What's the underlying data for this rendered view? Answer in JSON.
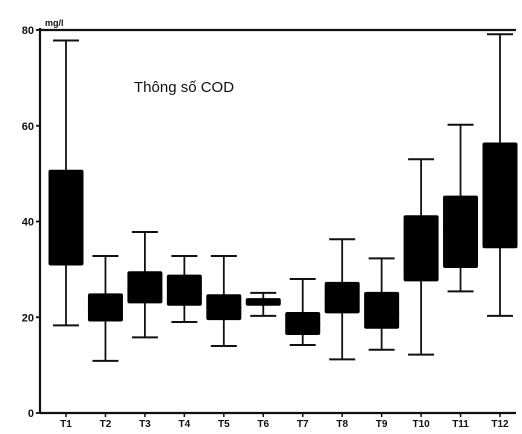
{
  "chart_data": {
    "type": "boxplot",
    "title": "Thông số COD",
    "unit": "mg/l",
    "ylim": [
      0,
      80
    ],
    "yticks": [
      0,
      20,
      40,
      60,
      80
    ],
    "grid": false,
    "legend": "none",
    "box_color": "#000000",
    "categories": [
      "T1",
      "T2",
      "T3",
      "T4",
      "T5",
      "T6",
      "T7",
      "T8",
      "T9",
      "T10",
      "T11",
      "T12"
    ],
    "boxes": [
      {
        "label": "T1",
        "min": 18.3,
        "q1": 30.8,
        "median": 41.0,
        "q3": 50.8,
        "max": 77.8
      },
      {
        "label": "T2",
        "min": 10.9,
        "q1": 19.1,
        "median": 22.0,
        "q3": 25.0,
        "max": 32.8
      },
      {
        "label": "T3",
        "min": 15.8,
        "q1": 22.9,
        "median": 26.0,
        "q3": 29.6,
        "max": 37.8
      },
      {
        "label": "T4",
        "min": 19.0,
        "q1": 22.4,
        "median": 25.5,
        "q3": 28.9,
        "max": 32.8
      },
      {
        "label": "T5",
        "min": 14.0,
        "q1": 19.4,
        "median": 22.0,
        "q3": 24.8,
        "max": 32.8
      },
      {
        "label": "T6",
        "min": 20.3,
        "q1": 22.4,
        "median": 23.0,
        "q3": 24.0,
        "max": 25.1
      },
      {
        "label": "T7",
        "min": 14.2,
        "q1": 16.3,
        "median": 18.5,
        "q3": 21.1,
        "max": 28.0
      },
      {
        "label": "T8",
        "min": 11.2,
        "q1": 20.8,
        "median": 24.0,
        "q3": 27.4,
        "max": 36.3
      },
      {
        "label": "T9",
        "min": 13.2,
        "q1": 17.6,
        "median": 21.0,
        "q3": 25.3,
        "max": 32.3
      },
      {
        "label": "T10",
        "min": 12.2,
        "q1": 27.5,
        "median": 34.0,
        "q3": 41.3,
        "max": 53.0
      },
      {
        "label": "T11",
        "min": 25.4,
        "q1": 30.3,
        "median": 38.0,
        "q3": 45.4,
        "max": 60.2
      },
      {
        "label": "T12",
        "min": 20.3,
        "q1": 34.4,
        "median": 45.0,
        "q3": 56.5,
        "max": 79.1
      }
    ]
  }
}
